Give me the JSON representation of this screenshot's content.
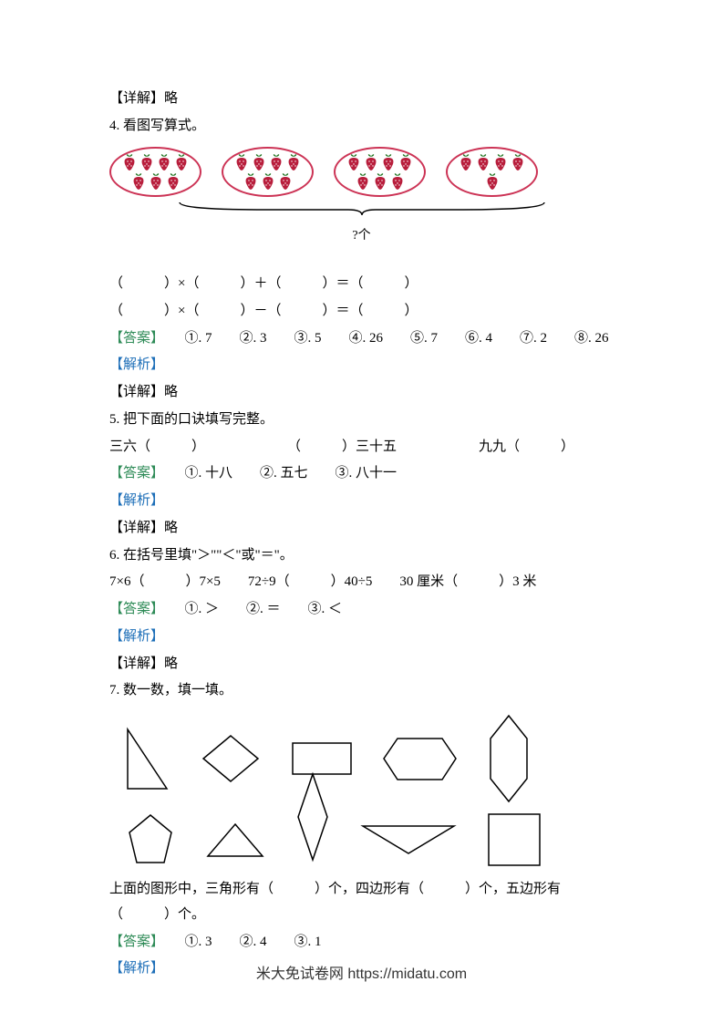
{
  "preDetail": "【详解】略",
  "q4": {
    "title": "4. 看图写算式。",
    "ovals": [
      7,
      7,
      7,
      5
    ],
    "qmark": "?个",
    "line1": "（　　　）×（　　　）＋（　　　）＝（　　　）",
    "line2": "（　　　）×（　　　）－（　　　）＝（　　　）",
    "answerLabel": "【答案】",
    "answer": "　　①. 7　　②. 3　　③. 5　　④. 26　　⑤. 7　　⑥. 4　　⑦. 2　　⑧. 26",
    "analysisLabel": "【解析】",
    "detail": "【详解】略"
  },
  "q5": {
    "title": "5. 把下面的口诀填写完整。",
    "items": [
      "三六（　　　）",
      "（　　　）三十五",
      "九九（　　　）"
    ],
    "answerLabel": "【答案】",
    "answer": "　　①. 十八　　②. 五七　　③. 八十一",
    "analysisLabel": "【解析】",
    "detail": "【详解】略"
  },
  "q6": {
    "title": "6. 在括号里填\"＞\"\"＜\"或\"＝\"。",
    "items": [
      "7×6（　　　）7×5",
      "72÷9（　　　）40÷5",
      "30 厘米（　　　）3 米"
    ],
    "answerLabel": "【答案】",
    "answer": "　　①. ＞　　②. ＝　　③. ＜",
    "analysisLabel": "【解析】",
    "detail": "【详解】略"
  },
  "q7": {
    "title": "7. 数一数，填一填。",
    "question": "上面的图形中，三角形有（　　　）个，四边形有（　　　）个，五边形有（　　　）个。",
    "answerLabel": "【答案】",
    "answer": "　　①. 3　　②. 4　　③. 1",
    "analysisLabel": "【解析】"
  },
  "footer": "米大免试卷网 https://midatu.com",
  "colors": {
    "answerColor": "#2e8b57",
    "analysisColor": "#1e6fb8",
    "berryColor": "#b81e3c",
    "ovalBorder": "#cc3355",
    "braceColor": "#000000"
  }
}
